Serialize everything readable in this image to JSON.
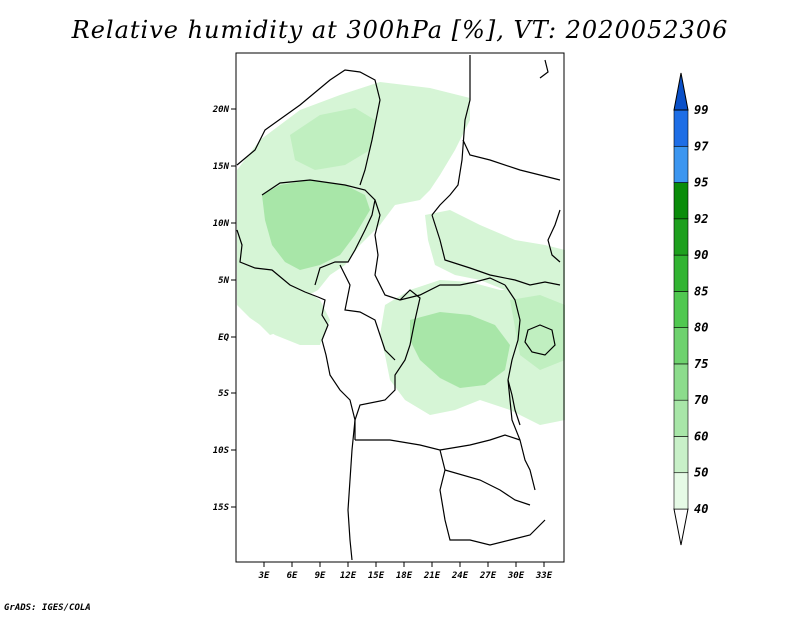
{
  "title": "Relative humidity at 300hPa [%], VT: 2020052306",
  "credit": "GrADS: IGES/COLA",
  "map": {
    "lon_range": [
      0,
      35
    ],
    "lat_range": [
      -20,
      25
    ],
    "lon_ticks": [
      "3E",
      "6E",
      "9E",
      "12E",
      "15E",
      "18E",
      "21E",
      "24E",
      "27E",
      "30E",
      "33E"
    ],
    "lat_ticks": [
      "20N",
      "15N",
      "10N",
      "5N",
      "EQ",
      "5S",
      "10S",
      "15S"
    ]
  },
  "colorbar": {
    "labels": [
      "40",
      "50",
      "60",
      "70",
      "75",
      "80",
      "85",
      "90",
      "92",
      "95",
      "97",
      "99"
    ],
    "colors": [
      "#ffffff",
      "#e6fae6",
      "#c8f0c8",
      "#a8e6a8",
      "#8cdc8c",
      "#6ed26e",
      "#50c850",
      "#32b432",
      "#1ea01e",
      "#0a8c0a",
      "#3c96f0",
      "#1e6ee6",
      "#0a50c8"
    ]
  }
}
